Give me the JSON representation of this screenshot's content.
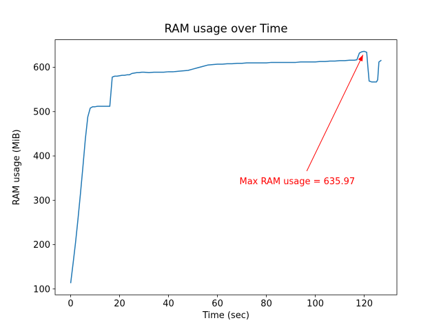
{
  "chart_data": {
    "type": "line",
    "title": "RAM usage over Time",
    "xlabel": "Time (sec)",
    "ylabel": "RAM usage (MiB)",
    "line_color": "#1f77b4",
    "grid": false,
    "legend": false,
    "xlim": [
      -6.35,
      133.35
    ],
    "ylim": [
      86.85,
      662.12
    ],
    "x_ticks": [
      0,
      20,
      40,
      60,
      80,
      100,
      120
    ],
    "y_ticks": [
      100,
      200,
      300,
      400,
      500,
      600
    ],
    "points": [
      [
        0,
        113
      ],
      [
        1,
        158
      ],
      [
        2,
        205
      ],
      [
        3,
        258
      ],
      [
        4,
        315
      ],
      [
        5,
        375
      ],
      [
        6,
        438
      ],
      [
        7,
        488
      ],
      [
        8,
        508
      ],
      [
        9,
        511
      ],
      [
        10,
        511
      ],
      [
        11,
        512
      ],
      [
        12,
        512
      ],
      [
        13,
        512
      ],
      [
        14,
        512
      ],
      [
        15,
        512
      ],
      [
        16,
        512
      ],
      [
        17,
        578
      ],
      [
        18,
        580
      ],
      [
        19,
        580
      ],
      [
        20,
        581
      ],
      [
        21,
        582
      ],
      [
        22,
        582
      ],
      [
        23,
        583
      ],
      [
        24,
        583
      ],
      [
        25,
        586
      ],
      [
        26,
        587
      ],
      [
        27,
        588
      ],
      [
        28,
        588
      ],
      [
        29,
        589
      ],
      [
        30,
        589
      ],
      [
        32,
        588
      ],
      [
        34,
        589
      ],
      [
        36,
        589
      ],
      [
        38,
        589
      ],
      [
        40,
        590
      ],
      [
        42,
        590
      ],
      [
        44,
        591
      ],
      [
        46,
        592
      ],
      [
        48,
        593
      ],
      [
        50,
        596
      ],
      [
        52,
        599
      ],
      [
        54,
        602
      ],
      [
        56,
        605
      ],
      [
        58,
        606
      ],
      [
        60,
        607
      ],
      [
        62,
        607
      ],
      [
        64,
        608
      ],
      [
        66,
        608
      ],
      [
        68,
        609
      ],
      [
        70,
        609
      ],
      [
        72,
        610
      ],
      [
        74,
        610
      ],
      [
        76,
        610
      ],
      [
        78,
        610
      ],
      [
        80,
        610
      ],
      [
        82,
        611
      ],
      [
        84,
        611
      ],
      [
        86,
        611
      ],
      [
        88,
        611
      ],
      [
        90,
        611
      ],
      [
        92,
        611
      ],
      [
        94,
        612
      ],
      [
        96,
        612
      ],
      [
        98,
        612
      ],
      [
        100,
        612
      ],
      [
        102,
        613
      ],
      [
        104,
        613
      ],
      [
        106,
        614
      ],
      [
        108,
        614
      ],
      [
        110,
        615
      ],
      [
        112,
        615
      ],
      [
        114,
        616
      ],
      [
        116,
        616
      ],
      [
        117,
        617
      ],
      [
        118,
        632
      ],
      [
        119,
        635
      ],
      [
        120,
        635.97
      ],
      [
        121,
        634
      ],
      [
        121.5,
        600
      ],
      [
        122,
        569
      ],
      [
        123,
        567
      ],
      [
        124,
        567
      ],
      [
        125,
        567
      ],
      [
        125.5,
        572
      ],
      [
        126,
        612
      ],
      [
        127,
        616
      ]
    ],
    "annotation": {
      "text": "Max RAM usage = 635.97",
      "max_value": 635.97,
      "color": "#ff0000",
      "text_x": 69,
      "text_y": 336,
      "arrow_start": [
        96.5,
        366
      ],
      "arrow_end": [
        119.5,
        628
      ]
    }
  }
}
